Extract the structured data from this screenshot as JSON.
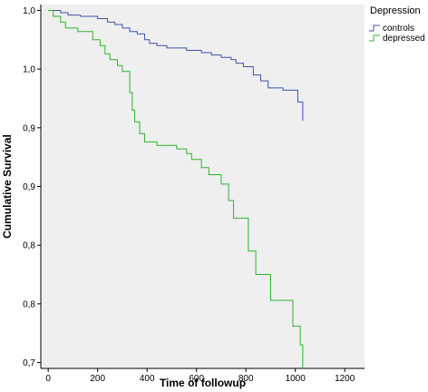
{
  "chart_data": {
    "type": "line",
    "xlabel": "Time of followup",
    "ylabel": "Cumulative Survival",
    "xlim": [
      -30,
      1280
    ],
    "ylim": [
      0.695,
      1.005
    ],
    "x_ticks": [
      0,
      200,
      400,
      600,
      800,
      1000,
      1200
    ],
    "x_tick_labels": [
      "0",
      "200",
      "400",
      "600",
      "800",
      "1000",
      "1200"
    ],
    "y_ticks": [
      0.7,
      0.75,
      0.8,
      0.85,
      0.9,
      0.95,
      1.0
    ],
    "y_tick_labels": [
      "0,7",
      "0,8",
      "0,8",
      "0,9",
      "0,9",
      "1,0",
      "1,0"
    ],
    "grid": false,
    "legend": {
      "title": "Depression",
      "position": "outside-right"
    },
    "colors": {
      "plot_background": "#efefef",
      "axis": "#000000"
    },
    "series": [
      {
        "name": "controls",
        "color": "#3d55a8",
        "steps": [
          [
            0,
            1.0
          ],
          [
            50,
            0.998
          ],
          [
            80,
            0.996
          ],
          [
            130,
            0.995
          ],
          [
            200,
            0.993
          ],
          [
            240,
            0.99
          ],
          [
            270,
            0.988
          ],
          [
            300,
            0.985
          ],
          [
            330,
            0.982
          ],
          [
            360,
            0.98
          ],
          [
            390,
            0.975
          ],
          [
            410,
            0.972
          ],
          [
            440,
            0.97
          ],
          [
            480,
            0.968
          ],
          [
            560,
            0.966
          ],
          [
            620,
            0.964
          ],
          [
            660,
            0.962
          ],
          [
            700,
            0.96
          ],
          [
            740,
            0.958
          ],
          [
            760,
            0.955
          ],
          [
            790,
            0.952
          ],
          [
            830,
            0.945
          ],
          [
            860,
            0.94
          ],
          [
            890,
            0.934
          ],
          [
            950,
            0.932
          ],
          [
            1010,
            0.922
          ],
          [
            1030,
            0.906
          ]
        ],
        "end_x": 1030
      },
      {
        "name": "depressed",
        "color": "#2db32d",
        "steps": [
          [
            0,
            1.0
          ],
          [
            20,
            0.995
          ],
          [
            50,
            0.99
          ],
          [
            70,
            0.985
          ],
          [
            120,
            0.982
          ],
          [
            180,
            0.975
          ],
          [
            210,
            0.97
          ],
          [
            230,
            0.963
          ],
          [
            250,
            0.958
          ],
          [
            280,
            0.953
          ],
          [
            300,
            0.948
          ],
          [
            330,
            0.93
          ],
          [
            340,
            0.915
          ],
          [
            350,
            0.905
          ],
          [
            370,
            0.895
          ],
          [
            390,
            0.888
          ],
          [
            440,
            0.885
          ],
          [
            520,
            0.882
          ],
          [
            560,
            0.878
          ],
          [
            580,
            0.873
          ],
          [
            620,
            0.866
          ],
          [
            650,
            0.86
          ],
          [
            700,
            0.852
          ],
          [
            730,
            0.838
          ],
          [
            750,
            0.823
          ],
          [
            810,
            0.795
          ],
          [
            840,
            0.775
          ],
          [
            900,
            0.753
          ],
          [
            990,
            0.731
          ],
          [
            1020,
            0.715
          ],
          [
            1030,
            0.696
          ]
        ],
        "end_x": 1030
      }
    ]
  }
}
